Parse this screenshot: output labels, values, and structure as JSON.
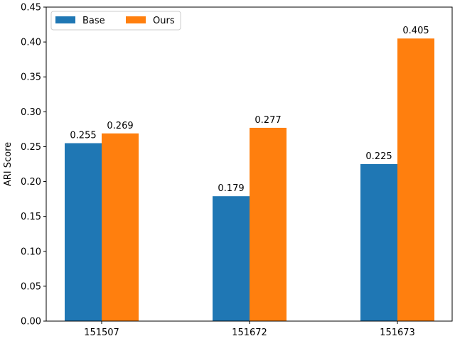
{
  "chart_data": {
    "type": "bar",
    "title": "",
    "xlabel": "",
    "ylabel": "ARI Score",
    "categories": [
      "151507",
      "151672",
      "151673"
    ],
    "series": [
      {
        "name": "Base",
        "values": [
          0.255,
          0.179,
          0.225
        ],
        "labels": [
          "0.255",
          "0.179",
          "0.225"
        ],
        "color": "#1f77b4"
      },
      {
        "name": "Ours",
        "values": [
          0.269,
          0.277,
          0.405
        ],
        "labels": [
          "0.269",
          "0.277",
          "0.405"
        ],
        "color": "#ff7f0e"
      }
    ],
    "ylim": [
      0,
      0.45
    ],
    "yticks": [
      "0.00",
      "0.05",
      "0.10",
      "0.15",
      "0.20",
      "0.25",
      "0.30",
      "0.35",
      "0.40",
      "0.45"
    ],
    "legend": "top-left",
    "grid": false
  }
}
